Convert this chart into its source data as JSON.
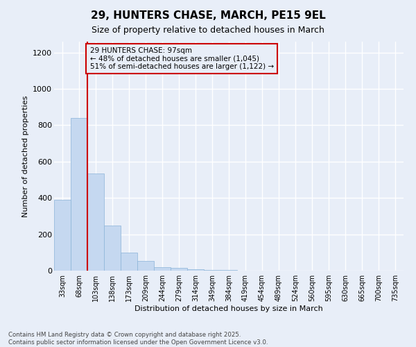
{
  "title": "29, HUNTERS CHASE, MARCH, PE15 9EL",
  "subtitle": "Size of property relative to detached houses in March",
  "xlabel": "Distribution of detached houses by size in March",
  "ylabel": "Number of detached properties",
  "annotation_title": "29 HUNTERS CHASE: 97sqm",
  "annotation_line1": "← 48% of detached houses are smaller (1,045)",
  "annotation_line2": "51% of semi-detached houses are larger (1,122) →",
  "footer_line1": "Contains HM Land Registry data © Crown copyright and database right 2025.",
  "footer_line2": "Contains public sector information licensed under the Open Government Licence v3.0.",
  "categories": [
    "33sqm",
    "68sqm",
    "103sqm",
    "138sqm",
    "173sqm",
    "209sqm",
    "244sqm",
    "279sqm",
    "314sqm",
    "349sqm",
    "384sqm",
    "419sqm",
    "454sqm",
    "489sqm",
    "524sqm",
    "560sqm",
    "595sqm",
    "630sqm",
    "665sqm",
    "700sqm",
    "735sqm"
  ],
  "values": [
    390,
    840,
    535,
    248,
    98,
    52,
    20,
    15,
    8,
    4,
    2,
    1,
    0,
    0,
    0,
    0,
    0,
    0,
    0,
    0,
    0
  ],
  "bar_color": "#c5d8f0",
  "bar_edge_color": "#8ab4d8",
  "redline_x": 1.5,
  "redline_color": "#cc0000",
  "annotation_box_color": "#cc0000",
  "background_color": "#e8eef8",
  "ylim": [
    0,
    1260
  ],
  "yticks": [
    0,
    200,
    400,
    600,
    800,
    1000,
    1200
  ]
}
